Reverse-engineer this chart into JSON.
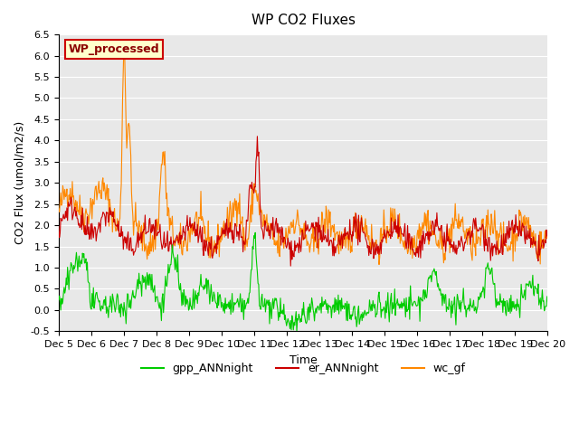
{
  "title": "WP CO2 Fluxes",
  "xlabel": "Time",
  "ylabel": "CO2 Flux (μmol/m2/s)",
  "ylabel_display": "CO2 Flux (umol/m2/s)",
  "ylim": [
    -0.5,
    6.5
  ],
  "yticks": [
    -0.5,
    0.0,
    0.5,
    1.0,
    1.5,
    2.0,
    2.5,
    3.0,
    3.5,
    4.0,
    4.5,
    5.0,
    5.5,
    6.0,
    6.5
  ],
  "n_days": 15,
  "n_points": 720,
  "background_color": "#e8e8e8",
  "plot_bg_color": "#e8e8e8",
  "grid_color": "white",
  "colors": {
    "gpp_ANNnight": "#00cc00",
    "er_ANNnight": "#cc0000",
    "wc_gf": "#ff8800"
  },
  "legend_label": "WP_processed",
  "legend_text_color": "#8b0000",
  "legend_bg_color": "#ffffcc",
  "legend_border_color": "#cc0000",
  "line_width": 0.8,
  "series_names": [
    "gpp_ANNnight",
    "er_ANNnight",
    "wc_gf"
  ],
  "xtick_labels": [
    "Dec 5",
    "Dec 6",
    "Dec 7",
    "Dec 8",
    "Dec 9",
    "Dec 10",
    "Dec 11",
    "Dec 12",
    "Dec 13",
    "Dec 14",
    "Dec 15",
    "Dec 16",
    "Dec 17",
    "Dec 18",
    "Dec 19",
    "Dec 20"
  ],
  "xtick_positions": [
    0,
    1,
    2,
    3,
    4,
    5,
    6,
    7,
    8,
    9,
    10,
    11,
    12,
    13,
    14,
    15
  ]
}
